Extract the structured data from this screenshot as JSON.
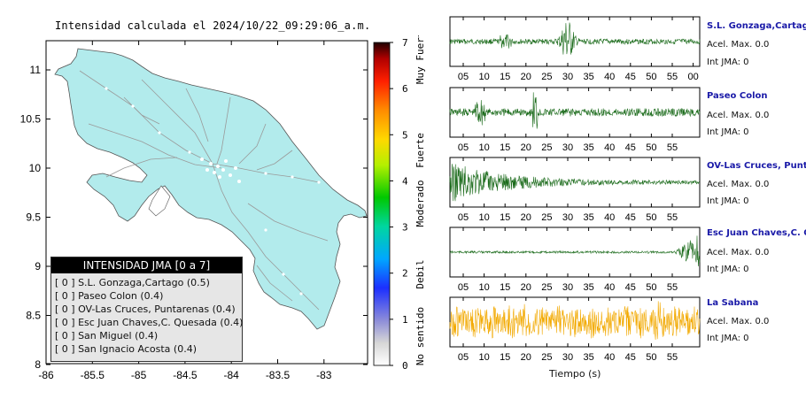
{
  "map": {
    "title": "Intensidad calculada el 2024/10/22_09:29:06_a.m.",
    "yticks": [
      "11",
      "10.5",
      "10",
      "9.5",
      "9",
      "8.5",
      "8"
    ],
    "xticks": [
      "-86",
      "-85.5",
      "-85",
      "-84.5",
      "-84",
      "-83.5",
      "-83"
    ]
  },
  "colorbar": {
    "ticks": [
      "7",
      "6",
      "5",
      "4",
      "3",
      "2",
      "1",
      "0"
    ],
    "labels": [
      "Muy Fuerte",
      "Fuerte",
      "Moderado",
      "Debil",
      "No sentido"
    ]
  },
  "legend": {
    "header": "INTENSIDAD JMA [0 a 7]",
    "rows": [
      "[ 0 ] S.L. Gonzaga,Cartago (0.5)",
      "[ 0 ] Paseo Colon (0.4)",
      "[ 0 ] OV-Las Cruces, Puntarenas (0.4)",
      "[ 0 ] Esc Juan Chaves,C. Quesada (0.4)",
      "[ 0 ] San Miguel (0.4)",
      "[ 0 ] San Ignacio Acosta (0.4)"
    ]
  },
  "stations": [
    {
      "name": "S.L. Gonzaga,Cartago",
      "acel": "Acel. Max. 0.0",
      "int": "Int JMA: 0",
      "color": "#1b6b1b",
      "ticks": [
        "05",
        "10",
        "15",
        "20",
        "25",
        "30",
        "35",
        "40",
        "45",
        "50",
        "55",
        "00"
      ]
    },
    {
      "name": "Paseo Colon",
      "acel": "Acel. Max. 0.0",
      "int": "Int JMA: 0",
      "color": "#1b6b1b",
      "ticks": [
        "05",
        "10",
        "15",
        "20",
        "25",
        "30",
        "35",
        "40",
        "45",
        "50",
        "55"
      ]
    },
    {
      "name": "OV-Las Cruces, Puntar",
      "acel": "Acel. Max. 0.0",
      "int": "Int JMA: 0",
      "color": "#1b6b1b",
      "ticks": [
        "05",
        "10",
        "15",
        "20",
        "25",
        "30",
        "35",
        "40",
        "45",
        "50",
        "55"
      ]
    },
    {
      "name": "Esc Juan Chaves,C. Qu",
      "acel": "Acel. Max. 0.0",
      "int": "Int JMA: 0",
      "color": "#1b6b1b",
      "ticks": [
        "05",
        "10",
        "15",
        "20",
        "25",
        "30",
        "35",
        "40",
        "45",
        "50",
        "55"
      ]
    },
    {
      "name": "La Sabana",
      "acel": "Acel. Max. 0.0",
      "int": "Int JMA: 0",
      "color": "#f2a900",
      "ticks": [
        "05",
        "10",
        "15",
        "20",
        "25",
        "30",
        "35",
        "40",
        "45",
        "50",
        "55"
      ]
    }
  ],
  "time_axis_label": "Tiempo (s)"
}
